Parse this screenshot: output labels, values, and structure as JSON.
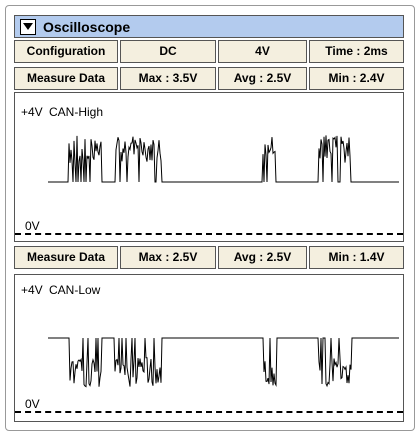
{
  "title": "Oscilloscope",
  "configuration": {
    "label": "Configuration",
    "coupling": "DC",
    "scale": "4V",
    "time": "Time : 2ms"
  },
  "channels": [
    {
      "measure": {
        "label": "Measure Data",
        "max": "Max : 3.5V",
        "avg": "Avg : 2.5V",
        "min": "Min : 2.4V"
      },
      "top_label": "+4V",
      "name": "CAN-High",
      "bottom_label": "0V"
    },
    {
      "measure": {
        "label": "Measure Data",
        "max": "Max : 2.5V",
        "avg": "Avg : 2.5V",
        "min": "Min : 1.4V"
      },
      "top_label": "+4V",
      "name": "CAN-Low",
      "bottom_label": "0V"
    }
  ]
}
